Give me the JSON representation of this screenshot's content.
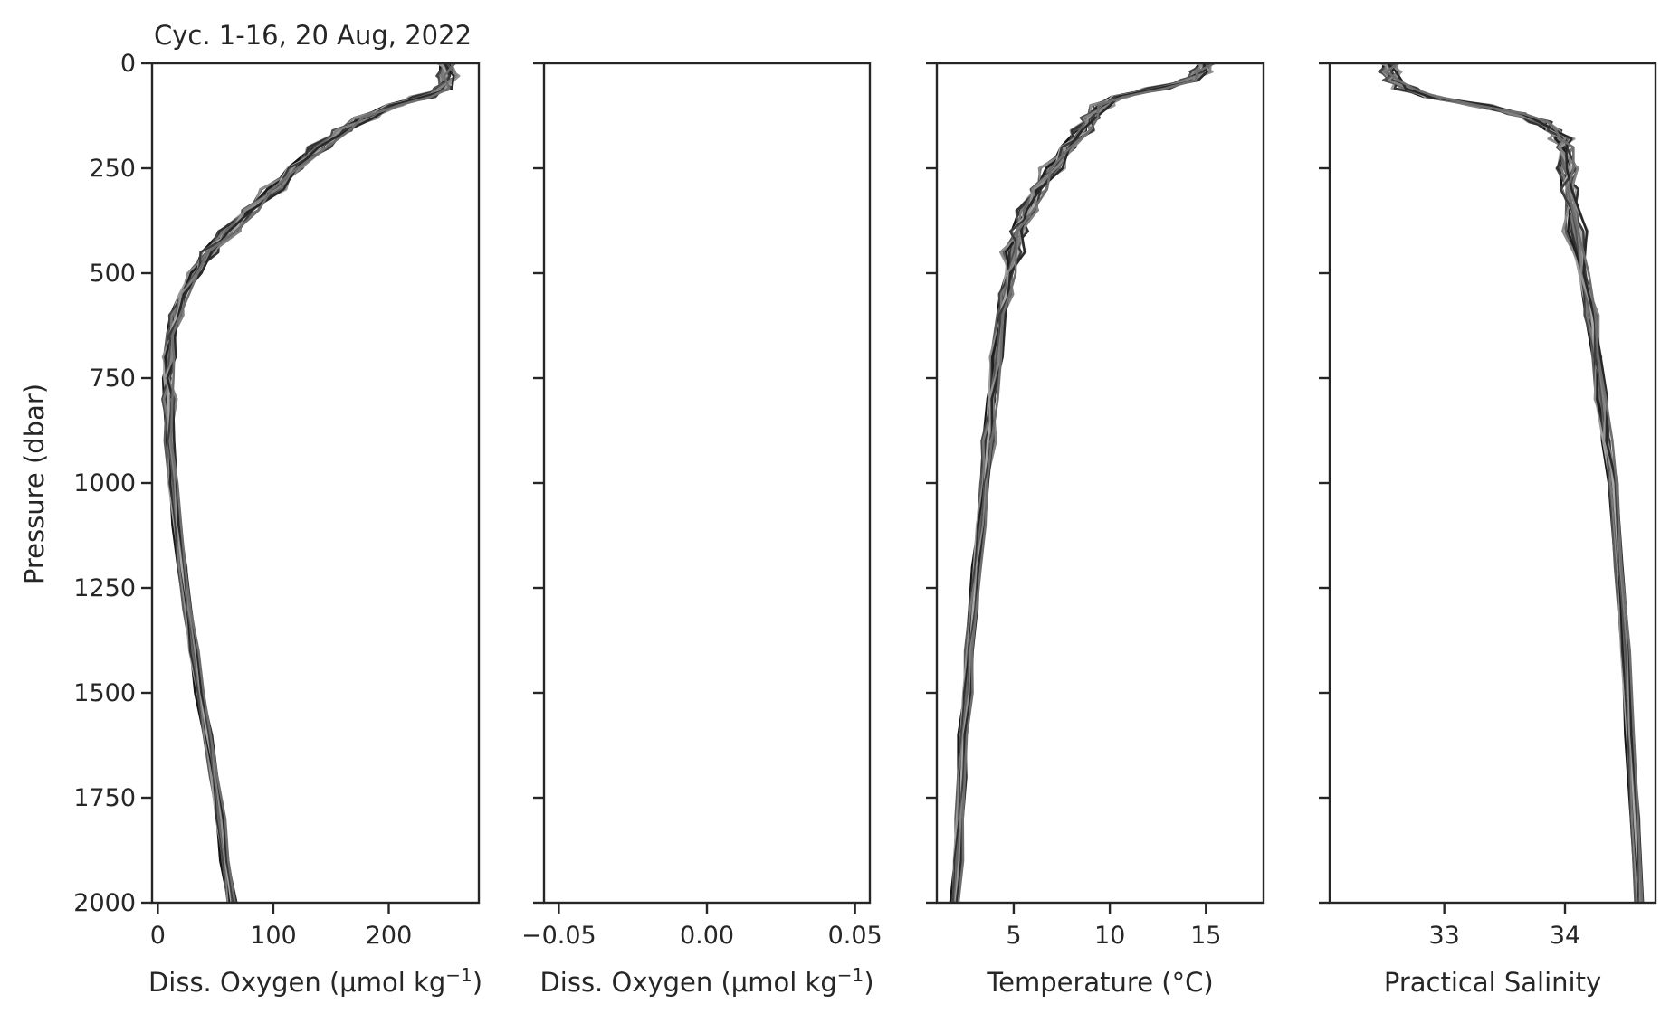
{
  "chart_data": {
    "title": "Cyc. 1-16, 20 Aug, 2022",
    "ylabel": "Pressure (dbar)",
    "ylim": [
      2000,
      0
    ],
    "y_ticks": [
      0,
      250,
      500,
      750,
      1000,
      1250,
      1500,
      1750,
      2000
    ],
    "y_tick_labels": [
      "0",
      "250",
      "500",
      "750",
      "1000",
      "1250",
      "1500",
      "1750",
      "2000"
    ],
    "panels": [
      {
        "type": "line",
        "xlabel": "Diss. Oxygen (μmol kg",
        "xlabel_sup": "−1",
        "xlabel_end": ")",
        "xlim": [
          -5,
          278
        ],
        "x_ticks": [
          0,
          100,
          200
        ],
        "x_tick_labels": [
          "0",
          "100",
          "200"
        ],
        "show_ytick_labels": true,
        "profile": {
          "pressure": [
            0,
            30,
            60,
            80,
            100,
            130,
            160,
            200,
            250,
            300,
            350,
            400,
            450,
            500,
            550,
            600,
            650,
            700,
            750,
            800,
            900,
            1000,
            1100,
            1200,
            1300,
            1400,
            1500,
            1600,
            1700,
            1800,
            1900,
            2000
          ],
          "value": [
            250,
            252,
            248,
            230,
            205,
            180,
            160,
            140,
            120,
            100,
            80,
            62,
            45,
            32,
            22,
            16,
            12,
            10,
            9,
            10,
            11,
            13,
            17,
            21,
            26,
            31,
            37,
            43,
            49,
            54,
            59,
            64
          ]
        },
        "n_profiles": 16
      },
      {
        "type": "line",
        "xlabel": "Diss. Oxygen (μmol kg",
        "xlabel_sup": "−1",
        "xlabel_end": ")",
        "xlim": [
          -0.055,
          0.055
        ],
        "x_ticks": [
          -0.05,
          0.0,
          0.05
        ],
        "x_tick_labels": [
          "−0.05",
          "0.00",
          "0.05"
        ],
        "show_ytick_labels": false,
        "profile": null,
        "n_profiles": 0
      },
      {
        "type": "line",
        "xlabel": "Temperature (°C)",
        "xlabel_sup": "",
        "xlabel_end": "",
        "xlim": [
          1.0,
          18.0
        ],
        "x_ticks": [
          5,
          10,
          15
        ],
        "x_tick_labels": [
          "5",
          "10",
          "15"
        ],
        "show_ytick_labels": false,
        "profile": {
          "pressure": [
            0,
            20,
            40,
            60,
            80,
            100,
            130,
            160,
            200,
            250,
            300,
            350,
            400,
            450,
            500,
            550,
            600,
            700,
            800,
            900,
            1000,
            1100,
            1200,
            1300,
            1400,
            1500,
            1600,
            1700,
            1800,
            1900,
            2000
          ],
          "value": [
            15.0,
            14.8,
            14.2,
            12.5,
            10.5,
            9.6,
            9.0,
            8.6,
            7.9,
            7.0,
            6.3,
            5.7,
            5.3,
            5.0,
            4.8,
            4.6,
            4.4,
            4.1,
            3.9,
            3.7,
            3.5,
            3.3,
            3.1,
            2.9,
            2.7,
            2.6,
            2.4,
            2.3,
            2.2,
            2.1,
            2.0
          ]
        },
        "n_profiles": 16
      },
      {
        "type": "line",
        "xlabel": "Practical Salinity",
        "xlabel_sup": "",
        "xlabel_end": "",
        "xlim": [
          32.05,
          34.75
        ],
        "x_ticks": [
          33,
          34
        ],
        "x_tick_labels": [
          "33",
          "34"
        ],
        "show_ytick_labels": false,
        "profile": {
          "pressure": [
            0,
            20,
            40,
            60,
            80,
            100,
            120,
            140,
            160,
            180,
            200,
            250,
            300,
            400,
            500,
            600,
            700,
            800,
            900,
            1000,
            1200,
            1400,
            1600,
            1800,
            2000
          ],
          "value": [
            32.55,
            32.56,
            32.58,
            32.68,
            32.9,
            33.3,
            33.6,
            33.8,
            33.92,
            33.97,
            34.0,
            34.02,
            34.04,
            34.09,
            34.15,
            34.22,
            34.27,
            34.3,
            34.35,
            34.4,
            34.45,
            34.5,
            34.54,
            34.58,
            34.62
          ]
        },
        "n_profiles": 16
      }
    ]
  }
}
